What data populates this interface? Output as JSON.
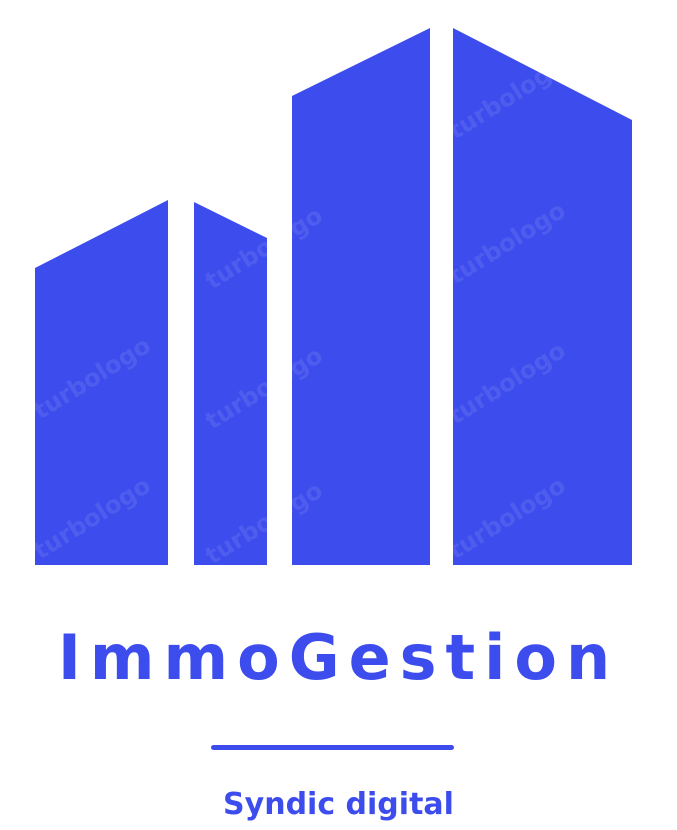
{
  "logo": {
    "brand_name": "ImmoGestion",
    "tagline": "Syndic digital",
    "watermark_text": "turbologo",
    "icon": "buildings-icon",
    "colors": {
      "primary": "#3d4ded",
      "background": "#ffffff"
    }
  }
}
